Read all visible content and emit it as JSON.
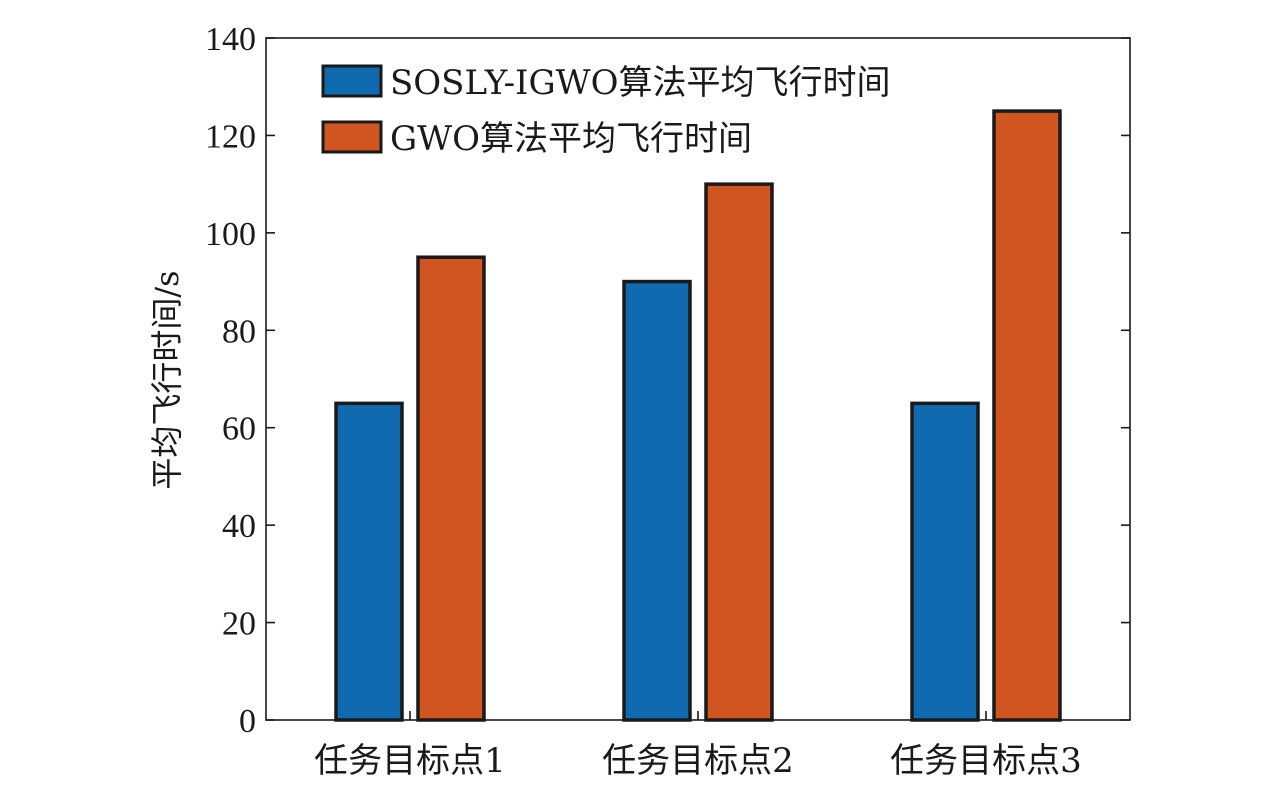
{
  "chart_data": {
    "type": "bar",
    "title": "",
    "xlabel": "",
    "ylabel": "平均飞行时间/s",
    "categories": [
      "任务目标点1",
      "任务目标点2",
      "任务目标点3"
    ],
    "series": [
      {
        "name": "SOSLY-IGWO算法平均飞行时间",
        "values": [
          65,
          90,
          65
        ],
        "color": "#106ab0"
      },
      {
        "name": "GWO算法平均飞行时间",
        "values": [
          95,
          110,
          125
        ],
        "color": "#d05520"
      }
    ],
    "ylim": [
      0,
      140
    ],
    "yticks": [
      0,
      20,
      40,
      60,
      80,
      100,
      120,
      140
    ],
    "grid": false,
    "legend_position": "top-left"
  }
}
